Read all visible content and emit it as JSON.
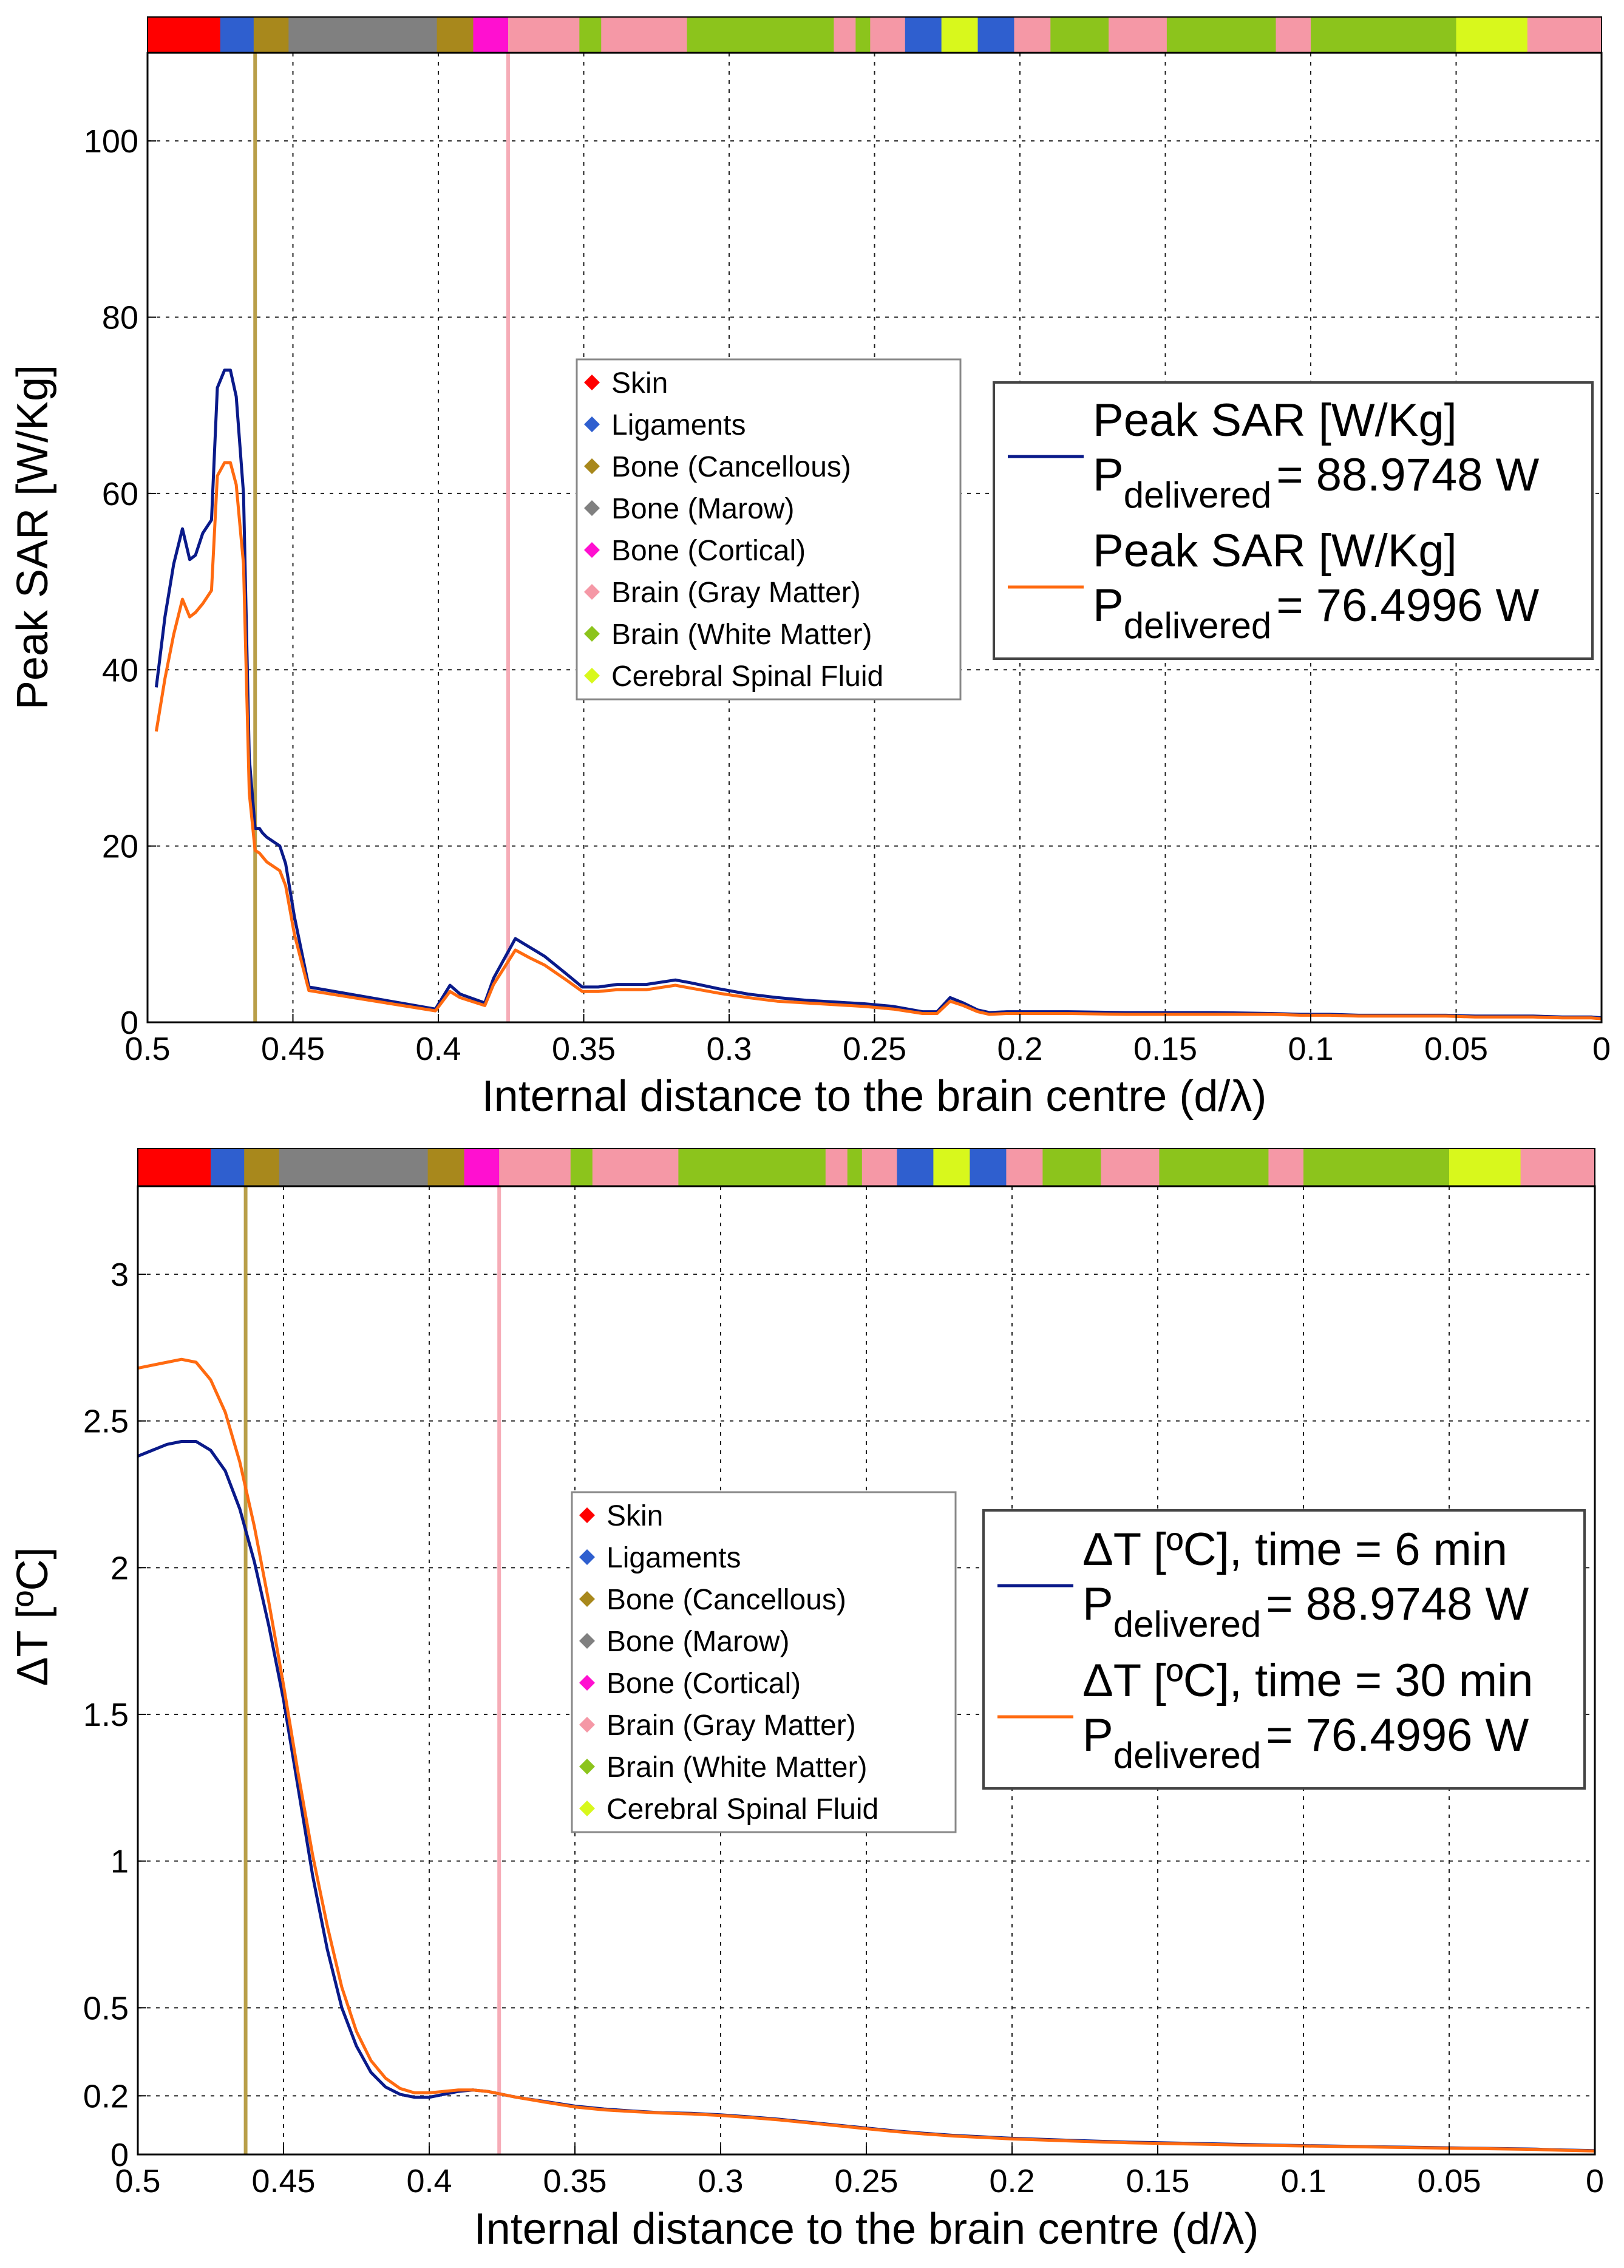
{
  "colors": {
    "series1": "#0a1a8a",
    "series2": "#ff6a10",
    "grid": "#222222",
    "axis": "#000000"
  },
  "tissues": [
    {
      "key": "skin",
      "name": "Skin",
      "color": "#ff0000"
    },
    {
      "key": "lig",
      "name": "Ligaments",
      "color": "#2f5fcf"
    },
    {
      "key": "canc",
      "name": "Bone (Cancellous)",
      "color": "#a8881c"
    },
    {
      "key": "marow",
      "name": "Bone (Marow)",
      "color": "#808080"
    },
    {
      "key": "cort",
      "name": "Bone (Cortical)",
      "color": "#ff10d0"
    },
    {
      "key": "gray",
      "name": "Brain (Gray Matter)",
      "color": "#f598a6"
    },
    {
      "key": "white",
      "name": "Brain (White Matter)",
      "color": "#8cc41c"
    },
    {
      "key": "csf",
      "name": "Cerebral Spinal Fluid",
      "color": "#d8f81c"
    }
  ],
  "tissue_strip": [
    {
      "from": 0.5,
      "to": 0.475,
      "tissue": "skin"
    },
    {
      "from": 0.475,
      "to": 0.4635,
      "tissue": "lig"
    },
    {
      "from": 0.4635,
      "to": 0.4515,
      "tissue": "canc"
    },
    {
      "from": 0.4515,
      "to": 0.4005,
      "tissue": "marow"
    },
    {
      "from": 0.4005,
      "to": 0.388,
      "tissue": "canc"
    },
    {
      "from": 0.388,
      "to": 0.376,
      "tissue": "cort"
    },
    {
      "from": 0.376,
      "to": 0.3515,
      "tissue": "gray"
    },
    {
      "from": 0.3515,
      "to": 0.344,
      "tissue": "white"
    },
    {
      "from": 0.344,
      "to": 0.3145,
      "tissue": "gray"
    },
    {
      "from": 0.3145,
      "to": 0.264,
      "tissue": "white"
    },
    {
      "from": 0.264,
      "to": 0.2565,
      "tissue": "gray"
    },
    {
      "from": 0.2565,
      "to": 0.2515,
      "tissue": "white"
    },
    {
      "from": 0.2515,
      "to": 0.2395,
      "tissue": "gray"
    },
    {
      "from": 0.2395,
      "to": 0.227,
      "tissue": "lig"
    },
    {
      "from": 0.227,
      "to": 0.2145,
      "tissue": "csf"
    },
    {
      "from": 0.2145,
      "to": 0.202,
      "tissue": "lig"
    },
    {
      "from": 0.202,
      "to": 0.1895,
      "tissue": "gray"
    },
    {
      "from": 0.1895,
      "to": 0.1695,
      "tissue": "white"
    },
    {
      "from": 0.1695,
      "to": 0.1495,
      "tissue": "gray"
    },
    {
      "from": 0.1495,
      "to": 0.112,
      "tissue": "white"
    },
    {
      "from": 0.112,
      "to": 0.1,
      "tissue": "gray"
    },
    {
      "from": 0.1,
      "to": 0.05,
      "tissue": "white"
    },
    {
      "from": 0.05,
      "to": 0.0255,
      "tissue": "csf"
    },
    {
      "from": 0.0255,
      "to": 0.0,
      "tissue": "gray"
    }
  ],
  "boundary_lines": [
    {
      "x": 0.463,
      "tissue": "canc"
    },
    {
      "x": 0.376,
      "tissue": "gray"
    }
  ],
  "chart_data": [
    {
      "type": "line",
      "title": "",
      "xlabel": "Internal distance to the brain centre (d/λ)",
      "ylabel": "Peak SAR [W/Kg]",
      "xlim": [
        0.5,
        0
      ],
      "ylim": [
        0,
        110
      ],
      "xticks": [
        0.5,
        0.45,
        0.4,
        0.35,
        0.3,
        0.25,
        0.2,
        0.15,
        0.1,
        0.05,
        0
      ],
      "xtick_labels": [
        "0.5",
        "0.45",
        "0.4",
        "0.35",
        "0.3",
        "0.25",
        "0.2",
        "0.15",
        "0.1",
        "0.05",
        "0"
      ],
      "yticks": [
        0,
        20,
        40,
        60,
        80,
        100
      ],
      "ytick_labels": [
        "0",
        "20",
        "40",
        "60",
        "80",
        "100"
      ],
      "grid": true,
      "legend_position": "right",
      "series": [
        {
          "name": "Peak SAR [W/Kg]",
          "power_label": "= 88.9748 W",
          "x": [
            0.497,
            0.494,
            0.491,
            0.488,
            0.4855,
            0.4835,
            0.481,
            0.478,
            0.476,
            0.4735,
            0.4715,
            0.4695,
            0.467,
            0.465,
            0.463,
            0.4615,
            0.4605,
            0.459,
            0.4545,
            0.4525,
            0.4495,
            0.4445,
            0.401,
            0.396,
            0.3925,
            0.384,
            0.381,
            0.3735,
            0.3685,
            0.3635,
            0.356,
            0.3505,
            0.345,
            0.3385,
            0.3285,
            0.3185,
            0.3135,
            0.3035,
            0.2935,
            0.2835,
            0.2735,
            0.2635,
            0.2535,
            0.2435,
            0.2335,
            0.2285,
            0.224,
            0.2195,
            0.2145,
            0.2105,
            0.2045,
            0.1835,
            0.1635,
            0.1335,
            0.1135,
            0.1035,
            0.0935,
            0.0835,
            0.0735,
            0.0635,
            0.0535,
            0.0435,
            0.0335,
            0.0235,
            0.0135,
            0.0035,
            0.0
          ],
          "y": [
            38,
            46,
            52,
            56,
            52.5,
            53,
            55.5,
            57,
            72,
            74,
            74,
            71,
            60,
            30,
            22,
            22,
            21.5,
            21,
            20,
            18,
            12,
            4,
            1.5,
            4.2,
            3.2,
            2.2,
            5,
            9.5,
            8.5,
            7.5,
            5.5,
            4,
            4,
            4.3,
            4.3,
            4.8,
            4.5,
            3.8,
            3.2,
            2.8,
            2.5,
            2.3,
            2.1,
            1.8,
            1.2,
            1.2,
            2.8,
            2.2,
            1.4,
            1.1,
            1.2,
            1.2,
            1.1,
            1.1,
            1.0,
            0.9,
            0.9,
            0.8,
            0.8,
            0.8,
            0.8,
            0.7,
            0.7,
            0.7,
            0.6,
            0.6,
            0.5
          ]
        },
        {
          "name": "Peak SAR [W/Kg]",
          "power_label": "= 76.4996 W",
          "x": [
            0.497,
            0.494,
            0.491,
            0.488,
            0.4855,
            0.4835,
            0.481,
            0.478,
            0.476,
            0.4735,
            0.4715,
            0.4695,
            0.467,
            0.465,
            0.463,
            0.4615,
            0.4605,
            0.459,
            0.4545,
            0.4525,
            0.4495,
            0.4445,
            0.401,
            0.396,
            0.3925,
            0.384,
            0.381,
            0.3735,
            0.3685,
            0.3635,
            0.356,
            0.3505,
            0.345,
            0.3385,
            0.3285,
            0.3185,
            0.3135,
            0.3035,
            0.2935,
            0.2835,
            0.2735,
            0.2635,
            0.2535,
            0.2435,
            0.2335,
            0.2285,
            0.224,
            0.2195,
            0.2145,
            0.2105,
            0.2045,
            0.1835,
            0.1635,
            0.1335,
            0.1135,
            0.1035,
            0.0935,
            0.0835,
            0.0735,
            0.0635,
            0.0535,
            0.0435,
            0.0335,
            0.0235,
            0.0135,
            0.0035,
            0.0
          ],
          "y": [
            33,
            39,
            44,
            48,
            46,
            46.5,
            47.5,
            49,
            62,
            63.5,
            63.5,
            61,
            52,
            26,
            19.5,
            19.2,
            18.8,
            18.2,
            17.2,
            15.5,
            10,
            3.6,
            1.3,
            3.5,
            2.8,
            1.9,
            4.3,
            8.2,
            7.3,
            6.5,
            4.8,
            3.5,
            3.5,
            3.7,
            3.7,
            4.2,
            3.9,
            3.3,
            2.8,
            2.4,
            2.2,
            2.0,
            1.8,
            1.5,
            1.0,
            1.0,
            2.4,
            1.9,
            1.2,
            0.9,
            1.0,
            1.0,
            0.9,
            0.9,
            0.9,
            0.8,
            0.8,
            0.7,
            0.7,
            0.7,
            0.7,
            0.6,
            0.6,
            0.6,
            0.5,
            0.5,
            0.4
          ]
        }
      ]
    },
    {
      "type": "line",
      "title": "",
      "xlabel": "Internal distance to the brain centre (d/λ)",
      "ylabel": "ΔT [ºC]",
      "xlim": [
        0.5,
        0
      ],
      "ylim": [
        0,
        3.3
      ],
      "xticks": [
        0.5,
        0.45,
        0.4,
        0.35,
        0.3,
        0.25,
        0.2,
        0.15,
        0.1,
        0.05,
        0
      ],
      "xtick_labels": [
        "0.5",
        "0.45",
        "0.4",
        "0.35",
        "0.3",
        "0.25",
        "0.2",
        "0.15",
        "0.1",
        "0.05",
        "0"
      ],
      "yticks": [
        0,
        0.2,
        0.5,
        1,
        1.5,
        2,
        2.5,
        3
      ],
      "ytick_labels": [
        "0",
        "0.2",
        "0.5",
        "1",
        "1.5",
        "2",
        "2.5",
        "3"
      ],
      "grid": true,
      "legend_position": "right",
      "series": [
        {
          "name": "ΔT [ºC], time = 6 min",
          "power_label": "= 88.9748 W",
          "x": [
            0.5,
            0.495,
            0.49,
            0.485,
            0.48,
            0.475,
            0.47,
            0.465,
            0.46,
            0.455,
            0.45,
            0.445,
            0.44,
            0.435,
            0.43,
            0.425,
            0.42,
            0.415,
            0.41,
            0.405,
            0.4,
            0.395,
            0.39,
            0.385,
            0.38,
            0.375,
            0.37,
            0.36,
            0.35,
            0.34,
            0.33,
            0.32,
            0.31,
            0.3,
            0.29,
            0.28,
            0.27,
            0.26,
            0.25,
            0.24,
            0.23,
            0.22,
            0.21,
            0.2,
            0.18,
            0.16,
            0.14,
            0.12,
            0.1,
            0.08,
            0.06,
            0.04,
            0.02,
            0.01,
            0.0
          ],
          "y": [
            2.38,
            2.4,
            2.42,
            2.43,
            2.43,
            2.4,
            2.33,
            2.2,
            2.02,
            1.8,
            1.55,
            1.25,
            0.95,
            0.7,
            0.5,
            0.37,
            0.28,
            0.23,
            0.205,
            0.195,
            0.195,
            0.205,
            0.215,
            0.22,
            0.215,
            0.205,
            0.195,
            0.18,
            0.165,
            0.155,
            0.148,
            0.142,
            0.14,
            0.135,
            0.128,
            0.12,
            0.11,
            0.1,
            0.09,
            0.08,
            0.072,
            0.065,
            0.06,
            0.055,
            0.048,
            0.042,
            0.038,
            0.034,
            0.03,
            0.027,
            0.024,
            0.021,
            0.018,
            0.015,
            0.013
          ]
        },
        {
          "name": "ΔT [ºC], time = 30 min",
          "power_label": "= 76.4996 W",
          "x": [
            0.5,
            0.495,
            0.49,
            0.485,
            0.48,
            0.475,
            0.47,
            0.465,
            0.46,
            0.455,
            0.45,
            0.445,
            0.44,
            0.435,
            0.43,
            0.425,
            0.42,
            0.415,
            0.41,
            0.405,
            0.4,
            0.395,
            0.39,
            0.385,
            0.38,
            0.375,
            0.37,
            0.36,
            0.35,
            0.34,
            0.33,
            0.32,
            0.31,
            0.3,
            0.29,
            0.28,
            0.27,
            0.26,
            0.25,
            0.24,
            0.23,
            0.22,
            0.21,
            0.2,
            0.18,
            0.16,
            0.14,
            0.12,
            0.1,
            0.08,
            0.06,
            0.04,
            0.02,
            0.01,
            0.0
          ],
          "y": [
            2.68,
            2.69,
            2.7,
            2.71,
            2.7,
            2.64,
            2.53,
            2.36,
            2.14,
            1.88,
            1.6,
            1.3,
            1.02,
            0.78,
            0.57,
            0.42,
            0.32,
            0.26,
            0.225,
            0.21,
            0.21,
            0.215,
            0.22,
            0.22,
            0.215,
            0.205,
            0.195,
            0.178,
            0.162,
            0.152,
            0.146,
            0.141,
            0.138,
            0.133,
            0.126,
            0.118,
            0.108,
            0.098,
            0.088,
            0.078,
            0.07,
            0.063,
            0.058,
            0.053,
            0.046,
            0.04,
            0.036,
            0.032,
            0.029,
            0.026,
            0.023,
            0.02,
            0.017,
            0.014,
            0.012
          ]
        }
      ]
    }
  ],
  "power_subscript_label": "P",
  "power_subscript_sub": "delivered"
}
